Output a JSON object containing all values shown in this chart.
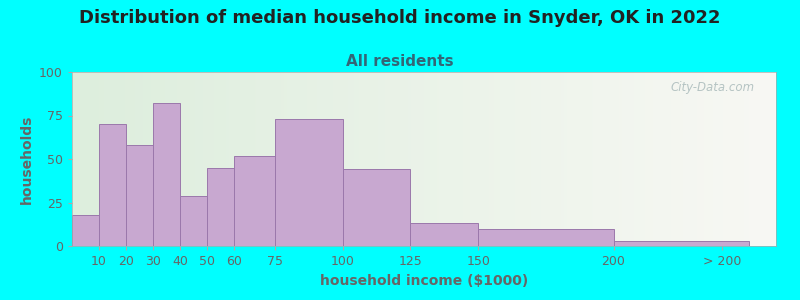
{
  "title": "Distribution of median household income in Snyder, OK in 2022",
  "subtitle": "All residents",
  "xlabel": "household income ($1000)",
  "ylabel": "households",
  "background_color": "#00FFFF",
  "plot_bg_gradient_left": "#ddeedd",
  "plot_bg_gradient_right": "#f8f8f4",
  "bar_color": "#c8a8d0",
  "bar_edge_color": "#9b78ab",
  "bar_left_edges": [
    0,
    10,
    20,
    30,
    40,
    50,
    60,
    75,
    100,
    125,
    150,
    200
  ],
  "bar_widths": [
    10,
    10,
    10,
    10,
    10,
    10,
    15,
    25,
    25,
    25,
    50,
    50
  ],
  "bar_heights": [
    18,
    70,
    58,
    82,
    29,
    45,
    52,
    73,
    44,
    13,
    10,
    3
  ],
  "ylim": [
    0,
    100
  ],
  "yticks": [
    0,
    25,
    50,
    75,
    100
  ],
  "xtick_labels": [
    "10",
    "20",
    "30",
    "40",
    "50",
    "60",
    "75",
    "100",
    "125",
    "150",
    "200",
    "> 200"
  ],
  "xtick_positions": [
    10,
    20,
    30,
    40,
    50,
    60,
    75,
    100,
    125,
    150,
    200,
    240
  ],
  "xlim": [
    0,
    260
  ],
  "title_fontsize": 13,
  "subtitle_fontsize": 11,
  "subtitle_color": "#336677",
  "axis_label_fontsize": 10,
  "tick_fontsize": 9,
  "tick_color": "#666666",
  "watermark_text": "City-Data.com",
  "watermark_color": "#aabbbb"
}
